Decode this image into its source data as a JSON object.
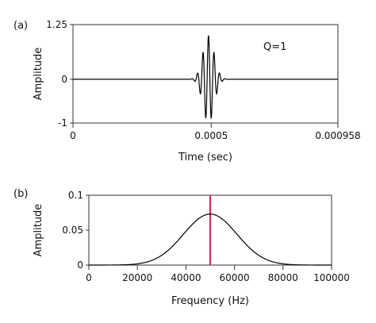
{
  "chart_data": [
    {
      "panel_label": "(a)",
      "type": "line",
      "xlabel": "Time (sec)",
      "ylabel": "Amplitude",
      "xlim": [
        0,
        0.000958
      ],
      "ylim": [
        -1,
        1.25
      ],
      "xticks": [
        {
          "value": 0,
          "label": "0"
        },
        {
          "value": 0.0005,
          "label": "0.0005"
        },
        {
          "value": 0.000958,
          "label": "0.000958"
        }
      ],
      "yticks": [
        {
          "value": 1.25,
          "label": "1.25"
        },
        {
          "value": 0,
          "label": "0"
        },
        {
          "value": -1,
          "label": "-1"
        }
      ],
      "annotation": "Q=1",
      "color": "#000000",
      "series": [
        {
          "carrier_frequency_hz": 50000,
          "center_time_s": 0.00049,
          "envelope_width_s": 2e-05,
          "peak_amplitude": 1,
          "description_note": "Gabor-like wavelet burst centered near 0.0005 s"
        }
      ]
    },
    {
      "panel_label": "(b)",
      "type": "line",
      "xlabel": "Frequency  (Hz)",
      "ylabel": "Amplitude",
      "xlim": [
        0,
        100000
      ],
      "ylim": [
        0,
        0.1
      ],
      "xticks": [
        {
          "value": 0,
          "label": "0"
        },
        {
          "value": 20000,
          "label": "20000"
        },
        {
          "value": 40000,
          "label": "40000"
        },
        {
          "value": 60000,
          "label": "60000"
        },
        {
          "value": 80000,
          "label": "80000"
        },
        {
          "value": 100000,
          "label": "100000"
        }
      ],
      "yticks": [
        {
          "value": 0.1,
          "label": "0.1"
        },
        {
          "value": 0.05,
          "label": "0.05"
        },
        {
          "value": 0,
          "label": "0"
        }
      ],
      "color": "#000000",
      "marker_line": {
        "x": 50000,
        "color": "#e0245e"
      },
      "series": [
        {
          "peak_x": 50000,
          "peak_y": 0.073,
          "sigma_hz": 11000
        }
      ]
    }
  ]
}
